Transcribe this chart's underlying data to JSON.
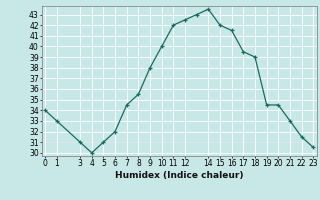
{
  "x": [
    0,
    1,
    3,
    4,
    5,
    6,
    7,
    8,
    9,
    10,
    11,
    12,
    13,
    14,
    15,
    16,
    17,
    18,
    19,
    20,
    21,
    22,
    23
  ],
  "y": [
    34,
    33,
    31,
    30,
    31,
    32,
    34.5,
    35.5,
    38,
    40,
    42,
    42.5,
    43,
    43.5,
    42,
    41.5,
    39.5,
    39,
    34.5,
    34.5,
    33,
    31.5,
    30.5
  ],
  "xlabel": "Humidex (Indice chaleur)",
  "xlim": [
    -0.3,
    23.3
  ],
  "ylim": [
    29.7,
    43.8
  ],
  "yticks": [
    30,
    31,
    32,
    33,
    34,
    35,
    36,
    37,
    38,
    39,
    40,
    41,
    42,
    43
  ],
  "xticks": [
    0,
    1,
    3,
    4,
    5,
    6,
    7,
    8,
    9,
    10,
    11,
    12,
    14,
    15,
    16,
    17,
    18,
    19,
    20,
    21,
    22,
    23
  ],
  "hline_y": 31,
  "line_color": "#1a6b5e",
  "bg_color": "#c8e8e8",
  "grid_color": "#ffffff",
  "tick_fontsize": 5.5,
  "label_fontsize": 6.5
}
